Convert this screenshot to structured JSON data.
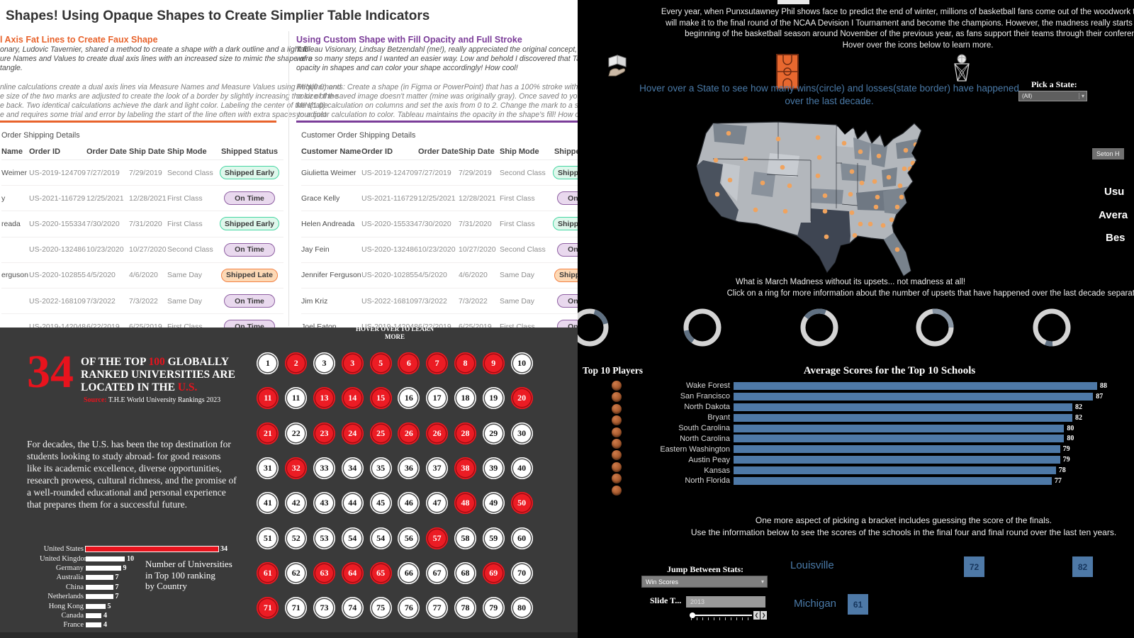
{
  "chart_data": [
    {
      "type": "bar",
      "orientation": "horizontal",
      "title": "Number of Universities in Top 100 ranking by Country",
      "categories": [
        "United States",
        "United Kingdom",
        "Germany",
        "Australia",
        "China",
        "Netherlands",
        "Hong Kong",
        "Canada",
        "France"
      ],
      "values": [
        34,
        10,
        9,
        7,
        7,
        7,
        5,
        4,
        4
      ],
      "highlight": "United States",
      "bar_color": "#ffffff",
      "highlight_color": "#e8131d",
      "xlim": [
        0,
        34
      ],
      "grid": false
    },
    {
      "type": "bar",
      "orientation": "horizontal",
      "title": "Average Scores for the Top 10 Schools",
      "categories": [
        "Wake Forest",
        "San Francisco",
        "North Dakota",
        "Bryant",
        "South Carolina",
        "North Carolina",
        "Eastern Washington",
        "Austin Peay",
        "Kansas",
        "North Florida"
      ],
      "values": [
        88,
        87,
        82,
        82,
        80,
        80,
        79,
        79,
        78,
        77
      ],
      "bar_color": "#4e79a7",
      "xlim": [
        0,
        88
      ],
      "grid": false,
      "value_labels": true
    }
  ],
  "shapes": {
    "title": "Shapes! Using Opaque Shapes to Create Simplier Table Indicators",
    "left": {
      "heading": "l Axis Fat Lines to Create Faux Shape",
      "para1": [
        "onary, Ludovic Tavernier, shared a method to create a shape with a dark outline and a light fill",
        "ure Names and Values to create dual axis lines with an increased size to mimic the shape of a",
        "tangle."
      ],
      "para2": [
        "nline calculations create a dual axis lines via Measure Names and Measure Values using MIN(0.0) and",
        "e size of the two marks are adjusted to create the look of a border by slightly increasing the size of the",
        "e back. Two identical calculations achieve the dark and light color.  Labeling the center of the shape",
        "e and requires some trial and error by labeling the start of the line often with extra spaces to adjust."
      ]
    },
    "right": {
      "heading": "Using Custom Shape with Fill Opacity and Full Stroke",
      "para1": [
        "Tableau Visionary, Lindsay Betzendahl (me!), really appreciated the original concept, but it felt",
        "were so many steps and I wanted an easier way. Low and behold I discovered that Tableau can s",
        "opacity in shapes and can color your shape accordingly! How cool!"
      ],
      "para2": [
        "Requirements: Create a shape (in Figma or PowerPoint) that has a 100% stroke with a 20% fill of the sa",
        "color of the saved image doesn't matter (mine was originally gray). Once saved to your shape file, crea",
        "MIN(1.0) calculation on columns and set the axis from 0 to 2. Change the mark to a shape, select the sha",
        "your color calculation to color. Tableau maintains the opacity in the shape's fill! How cool!?"
      ]
    },
    "left_table": {
      "title": "Order Shipping Details",
      "headers": [
        "Name",
        "Order ID",
        "Order Date",
        "Ship Date",
        "Ship Mode",
        "Shipped Status"
      ],
      "rows": [
        {
          "name": "Weimer",
          "id": "US-2019-124709",
          "od": "7/27/2019",
          "sd": "7/29/2019",
          "mode": "Second Class",
          "status": "Shipped Early",
          "type": "early"
        },
        {
          "name": "y",
          "id": "US-2021-116729",
          "od": "12/25/2021",
          "sd": "12/28/2021",
          "mode": "First Class",
          "status": "On Time",
          "type": "ontime"
        },
        {
          "name": "reada",
          "id": "US-2020-155334",
          "od": "7/30/2020",
          "sd": "7/31/2020",
          "mode": "First Class",
          "status": "Shipped Early",
          "type": "early"
        },
        {
          "name": "",
          "id": "US-2020-132486",
          "od": "10/23/2020",
          "sd": "10/27/2020",
          "mode": "Second Class",
          "status": "On Time",
          "type": "ontime"
        },
        {
          "name": "erguson",
          "id": "US-2020-102855",
          "od": "4/5/2020",
          "sd": "4/6/2020",
          "mode": "Same Day",
          "status": "Shipped Late",
          "type": "late"
        },
        {
          "name": "",
          "id": "US-2022-168109",
          "od": "7/3/2022",
          "sd": "7/3/2022",
          "mode": "Same Day",
          "status": "On Time",
          "type": "ontime"
        },
        {
          "name": "",
          "id": "US-2019-142048",
          "od": "6/22/2019",
          "sd": "6/25/2019",
          "mode": "First Class",
          "status": "On Time",
          "type": "ontime"
        }
      ]
    },
    "right_table": {
      "title": "Customer Order Shipping Details",
      "headers": [
        "Customer Name",
        "Order ID",
        "Order Date",
        "Ship Date",
        "Ship Mode",
        "Shipped Status"
      ],
      "rows": [
        {
          "name": "Giulietta Weimer",
          "id": "US-2019-124709",
          "od": "7/27/2019",
          "sd": "7/29/2019",
          "mode": "Second Class",
          "status": "Shipped Early",
          "type": "early"
        },
        {
          "name": "Grace Kelly",
          "id": "US-2021-116729",
          "od": "12/25/2021",
          "sd": "12/28/2021",
          "mode": "First Class",
          "status": "On Time",
          "type": "ontime"
        },
        {
          "name": "Helen Andreada",
          "id": "US-2020-155334",
          "od": "7/30/2020",
          "sd": "7/31/2020",
          "mode": "First Class",
          "status": "Shipped Early",
          "type": "early"
        },
        {
          "name": "Jay Fein",
          "id": "US-2020-132486",
          "od": "10/23/2020",
          "sd": "10/27/2020",
          "mode": "Second Class",
          "status": "On Time",
          "type": "ontime"
        },
        {
          "name": "Jennifer Ferguson",
          "id": "US-2020-102855",
          "od": "4/5/2020",
          "sd": "4/6/2020",
          "mode": "Same Day",
          "status": "Shipped Late",
          "type": "late"
        },
        {
          "name": "Jim Kriz",
          "id": "US-2022-168109",
          "od": "7/3/2022",
          "sd": "7/3/2022",
          "mode": "Same Day",
          "status": "On Time",
          "type": "ontime"
        },
        {
          "name": "Joel Eaton",
          "id": "US-2019-142048",
          "od": "6/22/2019",
          "sd": "6/25/2019",
          "mode": "First Class",
          "status": "On Time",
          "type": "ontime"
        }
      ]
    }
  },
  "uni": {
    "hover_note": "HOVER OVER TO LEARN MORE",
    "big_number": "34",
    "headline_parts": [
      {
        "t": "OF THE TOP "
      },
      {
        "t": "100",
        "red": true
      },
      {
        "t": " GLOBALLY RANKED UNIVERSITIES ARE LOCATED IN THE "
      },
      {
        "t": "U.S.",
        "red": true
      }
    ],
    "source_label": "Source:",
    "source_text": " T.H.E World University Rankings 2023",
    "paragraph": "For decades, the U.S. has been the top destination for students looking to study abroad- for good reasons like its academic excellence, diverse opportunities, research prowess, cultural richness, and the promise of a well-rounded educational and personal experience that prepares them for a successful future.",
    "note": "Number of Universities\nin Top 100 ranking\nby Country",
    "circles": [
      {
        "n": "1"
      },
      {
        "n": "2",
        "red": true
      },
      {
        "n": "3"
      },
      {
        "n": "3",
        "red": true
      },
      {
        "n": "5",
        "red": true
      },
      {
        "n": "6",
        "red": true
      },
      {
        "n": "7",
        "red": true
      },
      {
        "n": "8",
        "red": true
      },
      {
        "n": "9",
        "red": true
      },
      {
        "n": "10"
      },
      {
        "n": "11",
        "red": true
      },
      {
        "n": "11"
      },
      {
        "n": "13",
        "red": true
      },
      {
        "n": "14",
        "red": true
      },
      {
        "n": "15",
        "red": true
      },
      {
        "n": "16"
      },
      {
        "n": "17"
      },
      {
        "n": "18"
      },
      {
        "n": "19"
      },
      {
        "n": "20",
        "red": true
      },
      {
        "n": "21",
        "red": true
      },
      {
        "n": "22"
      },
      {
        "n": "23",
        "red": true
      },
      {
        "n": "24",
        "red": true
      },
      {
        "n": "25",
        "red": true
      },
      {
        "n": "26",
        "red": true
      },
      {
        "n": "26",
        "red": true
      },
      {
        "n": "28",
        "red": true
      },
      {
        "n": "29"
      },
      {
        "n": "30"
      },
      {
        "n": "31"
      },
      {
        "n": "32",
        "red": true
      },
      {
        "n": "33"
      },
      {
        "n": "34"
      },
      {
        "n": "35"
      },
      {
        "n": "36"
      },
      {
        "n": "37"
      },
      {
        "n": "38",
        "red": true
      },
      {
        "n": "39"
      },
      {
        "n": "40"
      },
      {
        "n": "41"
      },
      {
        "n": "42"
      },
      {
        "n": "43"
      },
      {
        "n": "44"
      },
      {
        "n": "45"
      },
      {
        "n": "46"
      },
      {
        "n": "47"
      },
      {
        "n": "48",
        "red": true
      },
      {
        "n": "49"
      },
      {
        "n": "50",
        "red": true
      },
      {
        "n": "51"
      },
      {
        "n": "52"
      },
      {
        "n": "53"
      },
      {
        "n": "54"
      },
      {
        "n": "54"
      },
      {
        "n": "56"
      },
      {
        "n": "57",
        "red": true
      },
      {
        "n": "58"
      },
      {
        "n": "59"
      },
      {
        "n": "60"
      },
      {
        "n": "61",
        "red": true
      },
      {
        "n": "62"
      },
      {
        "n": "63",
        "red": true
      },
      {
        "n": "64",
        "red": true
      },
      {
        "n": "65",
        "red": true
      },
      {
        "n": "66"
      },
      {
        "n": "67"
      },
      {
        "n": "68"
      },
      {
        "n": "69",
        "red": true
      },
      {
        "n": "70"
      },
      {
        "n": "71",
        "red": true
      },
      {
        "n": "71"
      },
      {
        "n": "73"
      },
      {
        "n": "74"
      },
      {
        "n": "75"
      },
      {
        "n": "76"
      },
      {
        "n": "77"
      },
      {
        "n": "78"
      },
      {
        "n": "79"
      },
      {
        "n": "80"
      }
    ]
  },
  "madness": {
    "intro": [
      "Every year, when Punxsutawney Phil shows face to predict the end of winter, millions of basketball fans come out of the woodwork to predict w",
      "will make it to the final round of the NCAA Devision I Tournament and become the champions. However, the madness really starts brewing a",
      "beginning of the basketball season around November of the previous year, as fans support their teams through their conferences.",
      "Hover over the icons below to learn more."
    ],
    "map_caption": [
      "Hover over a State to see how many wins(circle) and losses(state border) have happened",
      "over the last decade."
    ],
    "pick_state_label": "Pick a State:",
    "state_value": "(All)",
    "upsets1": "What is March Madness without its upsets... not madness at all!",
    "upsets2": "Click on a ring for more information about the number of upsets that have happened over the last decade separated by the different rounds.",
    "players_title": "Top 10 Players",
    "finals": [
      "One more aspect of picking a bracket includes guessing the score of the  finals.",
      "Use the information below to see the scores of the schools in the final four and final  round over the last ten years."
    ],
    "jump_label": "Jump Between Stats:",
    "jump_value": "Win Scores",
    "slide_label": "Slide T...",
    "slide_value": "2013",
    "finals_scores": {
      "team1": "Louisville",
      "t1s1": "72",
      "t1s2": "82",
      "team2": "Michigan",
      "t2s1": "61"
    },
    "edge": {
      "tooltip": "Seton H",
      "l1": "Usu",
      "l2": "Avera",
      "l3": "Bes"
    },
    "colors": {
      "accent_blue": "#4e79a7",
      "caption_blue": "#4a7aa8",
      "dot_orange": "#f0a35e"
    }
  }
}
